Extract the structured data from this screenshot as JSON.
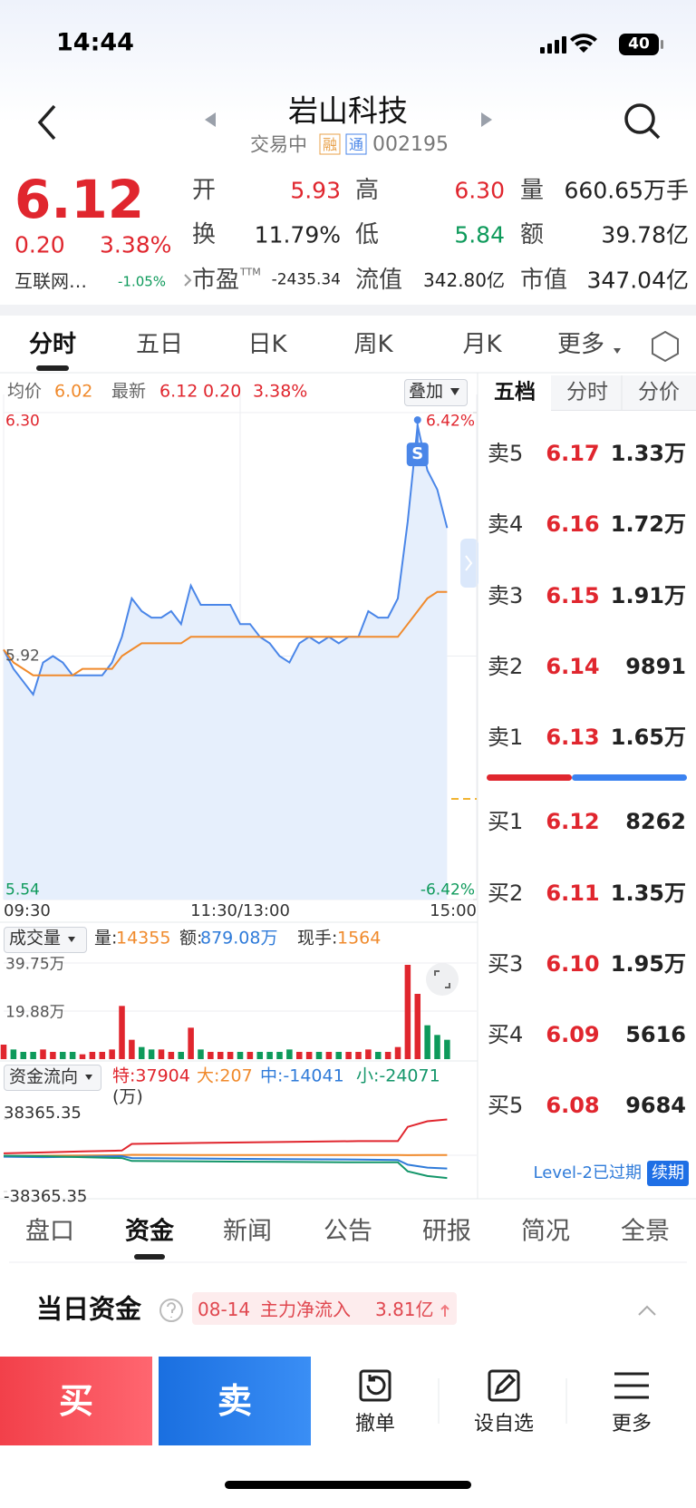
{
  "status_bar": {
    "time": "14:44",
    "battery": "40"
  },
  "header": {
    "title": "岩山科技",
    "status": "交易中",
    "badges": [
      "融",
      "通"
    ],
    "code": "002195"
  },
  "quote": {
    "price": "6.12",
    "change": "0.20",
    "change_pct": "3.38%",
    "sector": "互联网…",
    "sector_change": "-1.05%",
    "stats": [
      [
        {
          "label": "开",
          "value": "5.93",
          "color": "#e0262e"
        },
        {
          "label": "高",
          "value": "6.30",
          "color": "#e0262e"
        },
        {
          "label": "量",
          "value": "660.65万手",
          "color": "#222222"
        }
      ],
      [
        {
          "label": "换",
          "value": "11.79%",
          "color": "#222222"
        },
        {
          "label": "低",
          "value": "5.84",
          "color": "#0e9a5b"
        },
        {
          "label": "额",
          "value": "39.78亿",
          "color": "#222222"
        }
      ],
      [
        {
          "label": "市盈",
          "label_sup": "TTM",
          "value": "-2435.34",
          "color": "#222222"
        },
        {
          "label": "流值",
          "value": "342.80亿",
          "color": "#222222"
        },
        {
          "label": "市值",
          "value": "347.04亿",
          "color": "#222222"
        }
      ]
    ]
  },
  "chart_tabs": [
    "分时",
    "五日",
    "日K",
    "周K",
    "月K",
    "更多"
  ],
  "chart_info": {
    "avg_label": "均价",
    "avg": "6.02",
    "last_label": "最新",
    "last": "6.12",
    "change": "0.20",
    "change_pct": "3.38%",
    "overlay": "叠加"
  },
  "intraday": {
    "type": "line",
    "x": [
      0,
      5,
      10,
      15,
      20,
      25,
      30,
      35,
      40,
      45,
      50,
      55,
      60,
      65,
      70,
      75,
      80,
      85,
      90,
      95,
      100,
      105,
      110,
      115,
      120,
      125,
      130,
      135,
      140,
      145,
      150,
      155,
      160,
      165,
      170,
      175,
      180,
      185,
      190,
      195,
      200,
      205,
      210,
      215,
      220,
      225
    ],
    "price": [
      5.93,
      5.9,
      5.88,
      5.86,
      5.91,
      5.92,
      5.91,
      5.89,
      5.89,
      5.89,
      5.89,
      5.91,
      5.95,
      6.01,
      5.99,
      5.98,
      5.98,
      5.99,
      5.97,
      6.03,
      6.0,
      6.0,
      6.0,
      6.0,
      5.97,
      5.97,
      5.95,
      5.94,
      5.92,
      5.91,
      5.94,
      5.95,
      5.94,
      5.95,
      5.94,
      5.95,
      5.95,
      5.99,
      5.98,
      5.98,
      6.01,
      6.13,
      6.28,
      6.21,
      6.18,
      6.12
    ],
    "avg": [
      5.93,
      5.91,
      5.9,
      5.89,
      5.89,
      5.89,
      5.89,
      5.89,
      5.9,
      5.9,
      5.9,
      5.9,
      5.92,
      5.93,
      5.94,
      5.94,
      5.94,
      5.94,
      5.94,
      5.95,
      5.95,
      5.95,
      5.95,
      5.95,
      5.95,
      5.95,
      5.95,
      5.95,
      5.95,
      5.95,
      5.95,
      5.95,
      5.95,
      5.95,
      5.95,
      5.95,
      5.95,
      5.95,
      5.95,
      5.95,
      5.95,
      5.97,
      5.99,
      6.01,
      6.02,
      6.02
    ],
    "price_color": "#4a86e8",
    "avg_color": "#f08a2c",
    "xlim": [
      0,
      240
    ],
    "xticks": [
      {
        "value": 0,
        "label": "09:30"
      },
      {
        "value": 120,
        "label": "11:30/13:00"
      },
      {
        "value": 240,
        "label": "15:00"
      }
    ],
    "ylim": [
      5.54,
      6.3
    ],
    "yticks": [
      {
        "value": 6.3,
        "label": "6.30"
      },
      5.92,
      5.54
    ],
    "y2lim": [
      -6.42,
      6.42
    ],
    "y2ticks": [
      {
        "value": 6.42,
        "label": "6.42%"
      },
      {
        "value": -6.42,
        "label": "-6.42%"
      }
    ],
    "signal": "S"
  },
  "volume": {
    "type": "bar",
    "label": "成交量",
    "stats": [
      {
        "label": "量:",
        "value": "14355"
      },
      {
        "label": "额:",
        "value": "879.08万"
      },
      {
        "label": "现手:",
        "value": "1564"
      }
    ],
    "values": [
      6,
      4,
      3,
      3,
      4,
      3,
      3,
      3,
      2,
      3,
      3,
      4,
      22,
      8,
      5,
      4,
      4,
      3,
      3,
      13,
      4,
      3,
      3,
      3,
      3,
      3,
      3,
      3,
      3,
      4,
      3,
      3,
      3,
      3,
      3,
      3,
      3,
      4,
      3,
      3,
      5,
      39,
      27,
      14,
      10,
      8
    ],
    "ylim": [
      0,
      39.75
    ],
    "yticks": [
      {
        "value": 39.75,
        "label": "39.75万"
      },
      {
        "value": 19.88,
        "label": "19.88万"
      }
    ]
  },
  "flow": {
    "type": "line",
    "label": "资金流向",
    "unit": "(万)",
    "x": [
      0,
      20,
      40,
      60,
      65,
      100,
      140,
      180,
      200,
      205,
      215,
      225
    ],
    "series": [
      {
        "name": "特:37904",
        "color": "#e0262e",
        "values": [
          2000,
          3000,
          4000,
          5000,
          12000,
          13000,
          14000,
          15000,
          15000,
          30000,
          36000,
          37904
        ]
      },
      {
        "name": "大:207",
        "color": "#f08a2c",
        "values": [
          -1000,
          -500,
          -200,
          0,
          500,
          300,
          200,
          200,
          200,
          100,
          200,
          207
        ]
      },
      {
        "name": "中:-14041",
        "color": "#2f7bd9",
        "values": [
          -1500,
          -2000,
          -1500,
          -1000,
          -3000,
          -3500,
          -4000,
          -4500,
          -5000,
          -10000,
          -13000,
          -14041
        ]
      },
      {
        "name": "小:-24071",
        "color": "#14966a",
        "values": [
          -500,
          -1000,
          -2000,
          -3000,
          -6000,
          -6500,
          -7000,
          -7500,
          -7500,
          -17000,
          -22000,
          -24071
        ]
      }
    ],
    "ylim": [
      -38365.35,
      38365.35
    ],
    "yticks": [
      38365.35,
      -38365.35
    ]
  },
  "order_book": {
    "tabs": [
      "五档",
      "分时",
      "分价"
    ],
    "asks": [
      {
        "label": "卖5",
        "price": "6.17",
        "volume": "1.33万"
      },
      {
        "label": "卖4",
        "price": "6.16",
        "volume": "1.72万"
      },
      {
        "label": "卖3",
        "price": "6.15",
        "volume": "1.91万"
      },
      {
        "label": "卖2",
        "price": "6.14",
        "volume": "9891"
      },
      {
        "label": "卖1",
        "price": "6.13",
        "volume": "1.65万"
      }
    ],
    "bids": [
      {
        "label": "买1",
        "price": "6.12",
        "volume": "8262"
      },
      {
        "label": "买2",
        "price": "6.11",
        "volume": "1.35万"
      },
      {
        "label": "买3",
        "price": "6.10",
        "volume": "1.95万"
      },
      {
        "label": "买4",
        "price": "6.09",
        "volume": "5616"
      },
      {
        "label": "买5",
        "price": "6.08",
        "volume": "9684"
      }
    ],
    "level2": "Level-2已过期",
    "renew": "续期"
  },
  "bottom_tabs": [
    "盘口",
    "资金",
    "新闻",
    "公告",
    "研报",
    "简况",
    "全景"
  ],
  "daily_fund": {
    "title": "当日资金",
    "date": "08-14",
    "desc": "主力净流入",
    "amount": "3.81亿"
  },
  "actions": [
    "买",
    "卖",
    "撤单",
    "设自选",
    "更多"
  ]
}
